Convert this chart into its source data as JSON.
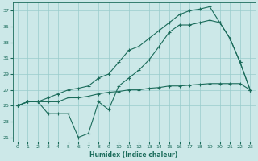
{
  "xlabel": "Humidex (Indice chaleur)",
  "xlim": [
    -0.5,
    23.5
  ],
  "ylim": [
    20.5,
    38.0
  ],
  "yticks": [
    21,
    23,
    25,
    27,
    29,
    31,
    33,
    35,
    37
  ],
  "xticks": [
    0,
    1,
    2,
    3,
    4,
    5,
    6,
    7,
    8,
    9,
    10,
    11,
    12,
    13,
    14,
    15,
    16,
    17,
    18,
    19,
    20,
    21,
    22,
    23
  ],
  "bg_color": "#cce8e8",
  "grid_color": "#99cccc",
  "line_color": "#1a6b5a",
  "line1_x": [
    0,
    1,
    2,
    3,
    4,
    5,
    6,
    7,
    8,
    9,
    10,
    11,
    12,
    13,
    14,
    15,
    16,
    17,
    18,
    19,
    20,
    21,
    22,
    23
  ],
  "line1_y": [
    25.0,
    25.5,
    25.5,
    25.5,
    25.5,
    26.0,
    26.0,
    26.2,
    26.5,
    26.7,
    26.8,
    27.0,
    27.0,
    27.2,
    27.3,
    27.5,
    27.5,
    27.6,
    27.7,
    27.8,
    27.8,
    27.8,
    27.8,
    27.0
  ],
  "line2_x": [
    0,
    1,
    2,
    3,
    4,
    5,
    6,
    7,
    8,
    9,
    10,
    11,
    12,
    13,
    14,
    15,
    16,
    17,
    18,
    19,
    20,
    21,
    22,
    23
  ],
  "line2_y": [
    25.0,
    25.5,
    25.5,
    26.0,
    26.5,
    27.0,
    27.2,
    27.5,
    28.5,
    29.0,
    30.5,
    32.0,
    32.5,
    33.5,
    34.5,
    35.5,
    36.5,
    37.0,
    37.2,
    37.5,
    35.5,
    33.5,
    30.5,
    27.0
  ],
  "line3_x": [
    0,
    1,
    2,
    3,
    4,
    5,
    6,
    7,
    8,
    9,
    10,
    11,
    12,
    13,
    14,
    15,
    16,
    17,
    18,
    19,
    20,
    21,
    22,
    23
  ],
  "line3_y": [
    25.0,
    25.5,
    25.5,
    24.0,
    24.0,
    24.0,
    21.0,
    21.5,
    25.5,
    24.5,
    27.5,
    28.5,
    29.5,
    30.8,
    32.5,
    34.3,
    35.2,
    35.2,
    35.5,
    35.8,
    35.5,
    33.5,
    30.5,
    27.0
  ]
}
